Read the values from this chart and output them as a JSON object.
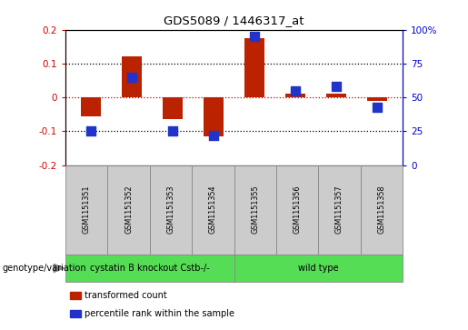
{
  "title": "GDS5089 / 1446317_at",
  "samples": [
    "GSM1151351",
    "GSM1151352",
    "GSM1151353",
    "GSM1151354",
    "GSM1151355",
    "GSM1151356",
    "GSM1151357",
    "GSM1151358"
  ],
  "transformed_count": [
    -0.055,
    0.12,
    -0.065,
    -0.115,
    0.175,
    0.01,
    0.01,
    -0.01
  ],
  "percentile_rank": [
    25,
    65,
    25,
    22,
    95,
    55,
    58,
    43
  ],
  "bar_color": "#bb2200",
  "dot_color": "#2233cc",
  "ylim_left": [
    -0.2,
    0.2
  ],
  "ylim_right": [
    0,
    100
  ],
  "yticks_left": [
    -0.2,
    -0.1,
    0.0,
    0.1,
    0.2
  ],
  "yticks_right": [
    0,
    25,
    50,
    75,
    100
  ],
  "ytick_labels_left": [
    "-0.2",
    "-0.1",
    "0",
    "0.1",
    "0.2"
  ],
  "ytick_labels_right": [
    "0",
    "25",
    "50",
    "75",
    "100%"
  ],
  "group_label_1": "cystatin B knockout Cstb-/-",
  "group_label_2": "wild type",
  "group_color": "#55dd55",
  "sample_box_color": "#cccccc",
  "group_row_label": "genotype/variation",
  "legend_items": [
    {
      "label": "transformed count",
      "color": "#bb2200"
    },
    {
      "label": "percentile rank within the sample",
      "color": "#2233cc"
    }
  ],
  "bar_width": 0.5,
  "dot_size": 55,
  "left_tick_color": "#cc0000",
  "right_tick_color": "#0000cc",
  "hline_zero_color": "#cc0000",
  "hline_other_color": "black"
}
